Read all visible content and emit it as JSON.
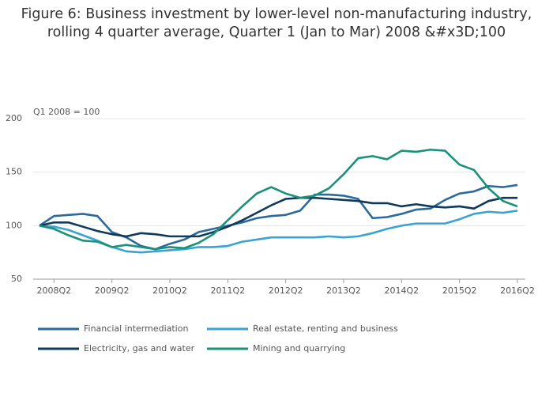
{
  "chart_data": {
    "type": "line",
    "title": "Figure 6: Business investment by lower-level non-manufacturing industry, rolling 4 quarter average, Quarter 1 (Jan to Mar) 2008 &#x3D;100",
    "annotation": "Q1 2008 = 100",
    "categories": [
      null,
      "2008Q2",
      null,
      null,
      null,
      "2009Q2",
      null,
      null,
      null,
      "2010Q2",
      null,
      null,
      null,
      "2011Q2",
      null,
      null,
      null,
      "2012Q2",
      null,
      null,
      null,
      "2013Q2",
      null,
      null,
      null,
      "2014Q2",
      null,
      null,
      null,
      "2015Q2",
      null,
      null,
      null,
      "2016Q2"
    ],
    "ylim": [
      50,
      200
    ],
    "yticks": [
      50,
      100,
      150,
      200
    ],
    "grid": true,
    "series": [
      {
        "name": "Financial intermediation",
        "color": "#2b6a9c",
        "values": [
          100,
          109,
          110,
          111,
          109,
          94,
          89,
          81,
          78,
          83,
          87,
          94,
          97,
          100,
          103,
          107,
          109,
          110,
          114,
          129,
          129,
          128,
          125,
          107,
          108,
          111,
          115,
          116,
          124,
          130,
          132,
          137,
          136,
          138
        ]
      },
      {
        "name": "Real estate, renting and business",
        "color": "#3ba3d4",
        "values": [
          100,
          99,
          96,
          91,
          86,
          80,
          76,
          75,
          76,
          77,
          78,
          80,
          80,
          81,
          85,
          87,
          89,
          89,
          89,
          89,
          90,
          89,
          90,
          93,
          97,
          100,
          102,
          102,
          102,
          106,
          111,
          113,
          112,
          114
        ]
      },
      {
        "name": "Electricity, gas and water",
        "color": "#0f3a5c",
        "values": [
          100,
          103,
          103,
          99,
          95,
          92,
          90,
          93,
          92,
          90,
          90,
          90,
          94,
          99,
          105,
          112,
          119,
          125,
          126,
          126,
          125,
          124,
          123,
          121,
          121,
          118,
          120,
          118,
          117,
          118,
          116,
          123,
          126,
          126
        ]
      },
      {
        "name": "Mining and quarrying",
        "color": "#1a917a",
        "values": [
          100,
          97,
          91,
          86,
          85,
          80,
          82,
          80,
          78,
          80,
          79,
          84,
          92,
          105,
          118,
          130,
          136,
          130,
          126,
          128,
          135,
          148,
          163,
          165,
          162,
          170,
          169,
          171,
          170,
          157,
          152,
          135,
          123,
          118
        ]
      }
    ]
  }
}
